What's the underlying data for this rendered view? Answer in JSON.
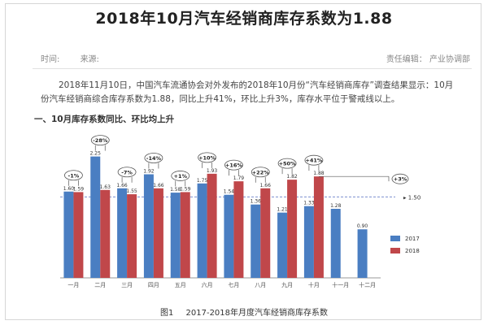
{
  "article": {
    "title": "2018年10月汽车经销商库存系数为1.88",
    "time_label": "时间:",
    "source_label": "来源:",
    "editor": "责任编辑： 产业协调部",
    "paragraph": "2018年11月10日，中国汽车流通协会对外发布的2018年10月份“汽车经销商库存”调查结果显示：10月份汽车经销商综合库存系数为1.88，同比上升41%，环比上升3%，库存水平位于警戒线以上。",
    "section_heading": "一、10月库存系数同比、环比均上升",
    "figure_label": "图1",
    "figure_caption": "2017-2018年月度汽车经销商库存系数"
  },
  "chart_data": {
    "type": "bar",
    "categories": [
      "一月",
      "二月",
      "三月",
      "四月",
      "五月",
      "六月",
      "七月",
      "八月",
      "九月",
      "十月",
      "十一月",
      "十二月"
    ],
    "series": [
      {
        "name": "2017",
        "color": "#4a7ec2",
        "values": [
          1.6,
          2.25,
          1.66,
          1.92,
          1.58,
          1.75,
          1.54,
          1.36,
          1.21,
          1.33,
          1.28,
          0.9
        ]
      },
      {
        "name": "2018",
        "color": "#c0474a",
        "values": [
          1.59,
          1.63,
          1.55,
          1.66,
          1.59,
          1.93,
          1.79,
          1.66,
          1.82,
          1.88,
          null,
          null
        ]
      }
    ],
    "yoy_labels": [
      "-1%",
      "-28%",
      "-7%",
      "-14%",
      "+1%",
      "+10%",
      "+16%",
      "+22%",
      "+50%",
      "+41%"
    ],
    "mom_label": "+3%",
    "warning_line": {
      "value": 1.5,
      "label": "1.50"
    },
    "ylim": [
      0,
      2.5
    ],
    "legend_position": "right"
  }
}
